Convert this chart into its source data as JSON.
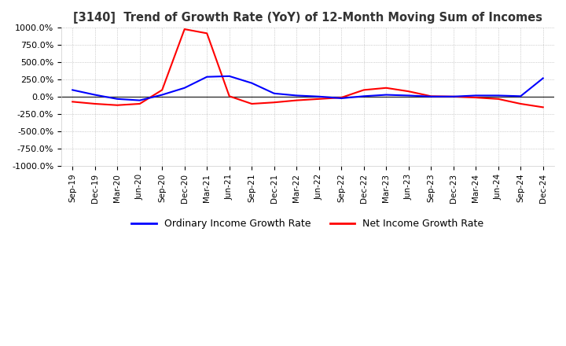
{
  "title": "[3140]  Trend of Growth Rate (YoY) of 12-Month Moving Sum of Incomes",
  "ylim": [
    -1000,
    1000
  ],
  "yticks": [
    -1000,
    -750,
    -500,
    -250,
    0,
    250,
    500,
    750,
    1000
  ],
  "ytick_labels": [
    "-1000.0%",
    "-750.0%",
    "-500.0%",
    "-250.0%",
    "0.0%",
    "250.0%",
    "500.0%",
    "750.0%",
    "1000.0%"
  ],
  "legend_labels": [
    "Ordinary Income Growth Rate",
    "Net Income Growth Rate"
  ],
  "line_colors": [
    "#0000ff",
    "#ff0000"
  ],
  "background_color": "#ffffff",
  "plot_bg_color": "#ffffff",
  "grid_color": "#aaaaaa",
  "x_labels": [
    "Sep-19",
    "Dec-19",
    "Mar-20",
    "Jun-20",
    "Sep-20",
    "Dec-20",
    "Mar-21",
    "Jun-21",
    "Sep-21",
    "Dec-21",
    "Mar-22",
    "Jun-22",
    "Sep-22",
    "Dec-22",
    "Mar-23",
    "Jun-23",
    "Sep-23",
    "Dec-23",
    "Mar-24",
    "Jun-24",
    "Sep-24",
    "Dec-24"
  ],
  "ordinary_income": [
    100,
    30,
    -30,
    -50,
    30,
    130,
    290,
    300,
    200,
    50,
    20,
    5,
    -20,
    10,
    30,
    20,
    5,
    5,
    20,
    20,
    10,
    270
  ],
  "net_income": [
    -70,
    -100,
    -120,
    -100,
    100,
    980,
    920,
    10,
    -100,
    -80,
    -50,
    -30,
    -10,
    100,
    130,
    80,
    10,
    5,
    -10,
    -30,
    -100,
    -150
  ]
}
